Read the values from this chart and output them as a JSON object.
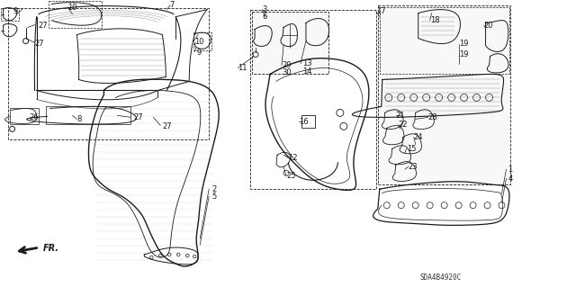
{
  "background_color": "#ffffff",
  "line_color": "#1a1a1a",
  "light_gray": "#c8c8c8",
  "mid_gray": "#888888",
  "code": "SDA4B4920C",
  "figsize": [
    6.4,
    3.19
  ],
  "dpi": 100,
  "text_labels": [
    [
      "9",
      14,
      12
    ],
    [
      "10",
      75,
      8
    ],
    [
      "7",
      188,
      5
    ],
    [
      "27",
      42,
      28
    ],
    [
      "27",
      38,
      48
    ],
    [
      "27",
      148,
      130
    ],
    [
      "27",
      180,
      140
    ],
    [
      "26",
      32,
      130
    ],
    [
      "8",
      85,
      132
    ],
    [
      "10",
      216,
      46
    ],
    [
      "9",
      218,
      58
    ],
    [
      "3",
      291,
      10
    ],
    [
      "6",
      291,
      18
    ],
    [
      "11",
      264,
      75
    ],
    [
      "29",
      313,
      72
    ],
    [
      "30",
      313,
      80
    ],
    [
      "13",
      336,
      70
    ],
    [
      "14",
      336,
      79
    ],
    [
      "16",
      332,
      135
    ],
    [
      "12",
      320,
      175
    ],
    [
      "25",
      318,
      195
    ],
    [
      "2",
      235,
      210
    ],
    [
      "5",
      235,
      218
    ],
    [
      "17",
      418,
      12
    ],
    [
      "18",
      478,
      22
    ],
    [
      "19",
      510,
      48
    ],
    [
      "19",
      510,
      60
    ],
    [
      "20",
      538,
      28
    ],
    [
      "21",
      440,
      128
    ],
    [
      "22",
      443,
      138
    ],
    [
      "28",
      476,
      130
    ],
    [
      "24",
      460,
      152
    ],
    [
      "15",
      452,
      165
    ],
    [
      "23",
      454,
      185
    ],
    [
      "1",
      565,
      188
    ],
    [
      "4",
      565,
      198
    ]
  ]
}
